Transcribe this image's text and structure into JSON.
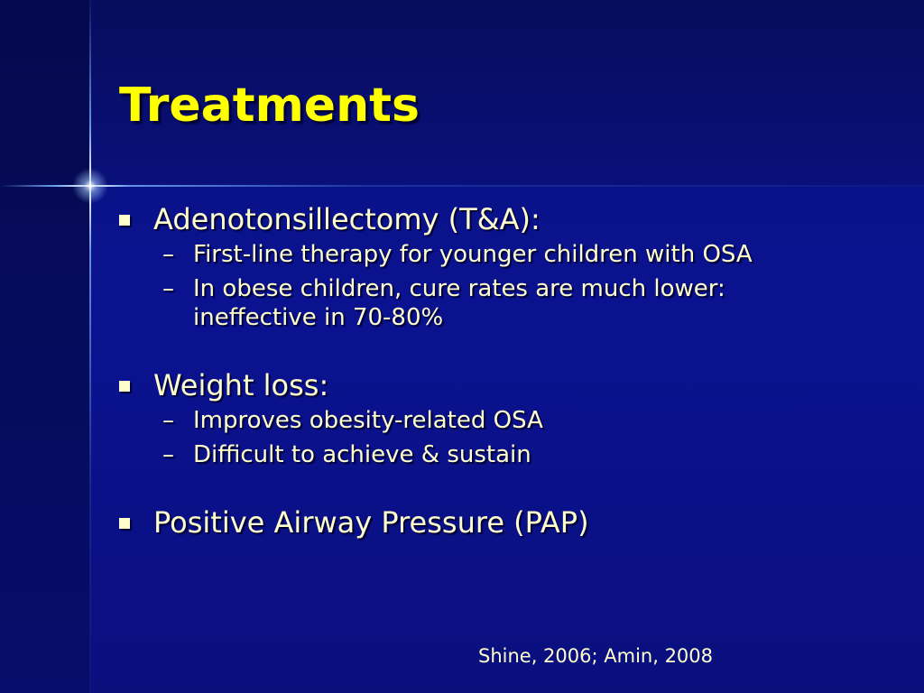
{
  "slide": {
    "title": "Treatments",
    "bullets": [
      {
        "text": "Adenotonsillectomy (T&A):",
        "subs": [
          "First-line therapy for younger children with OSA",
          "In obese children, cure rates are much lower:",
          "ineffective in 70-80%"
        ]
      },
      {
        "text": "Weight loss:",
        "subs": [
          "Improves obesity-related OSA",
          "Difficult to achieve & sustain"
        ]
      },
      {
        "text": "Positive Airway Pressure (PAP)",
        "subs": []
      }
    ],
    "dash": "–",
    "citation": "Shine, 2006; Amin, 2008"
  },
  "colors": {
    "background": "#0a0f70",
    "title": "#ffff00",
    "body_text": "#ffffcc"
  }
}
